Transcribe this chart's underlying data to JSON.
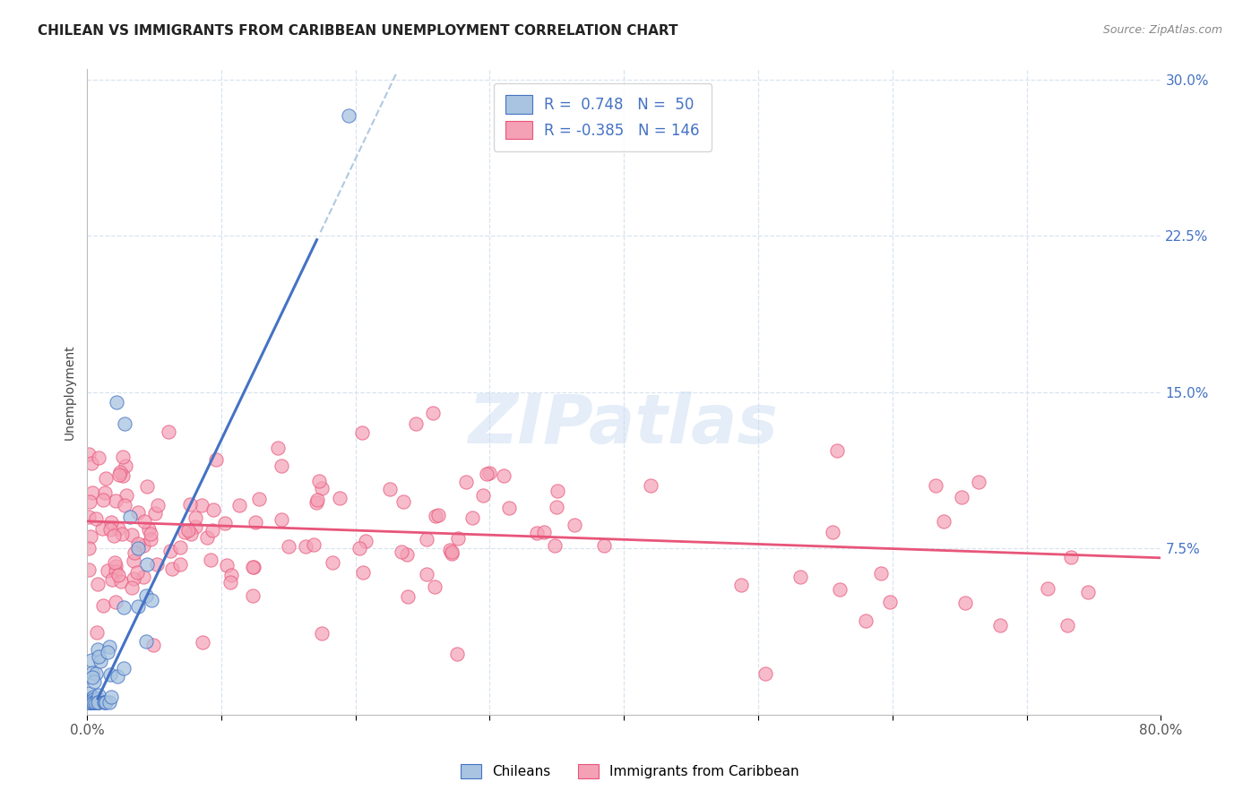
{
  "title": "CHILEAN VS IMMIGRANTS FROM CARIBBEAN UNEMPLOYMENT CORRELATION CHART",
  "source": "Source: ZipAtlas.com",
  "ylabel": "Unemployment",
  "watermark": "ZIPatlas",
  "legend_r_chileans": "R =  0.748",
  "legend_n_chileans": "N =  50",
  "legend_r_carib": "R = -0.385",
  "legend_n_carib": "N = 146",
  "legend_label_chileans": "Chileans",
  "legend_label_carib": "Immigrants from Caribbean",
  "xlim": [
    0.0,
    0.8
  ],
  "ylim": [
    -0.005,
    0.305
  ],
  "color_chileans": "#a8c4e0",
  "color_carib": "#f4a0b5",
  "color_line_chileans": "#4472C4",
  "color_line_carib": "#E8557A",
  "color_dashed_line": "#b0c8e0",
  "background_color": "#ffffff",
  "grid_color": "#d8e4f0",
  "title_color": "#222222",
  "source_color": "#888888",
  "legend_text_color": "#4472C4",
  "right_tick_color": "#4472C4",
  "chilean_slope": 1.35,
  "chilean_intercept": -0.008,
  "carib_slope": -0.022,
  "carib_intercept": 0.088
}
